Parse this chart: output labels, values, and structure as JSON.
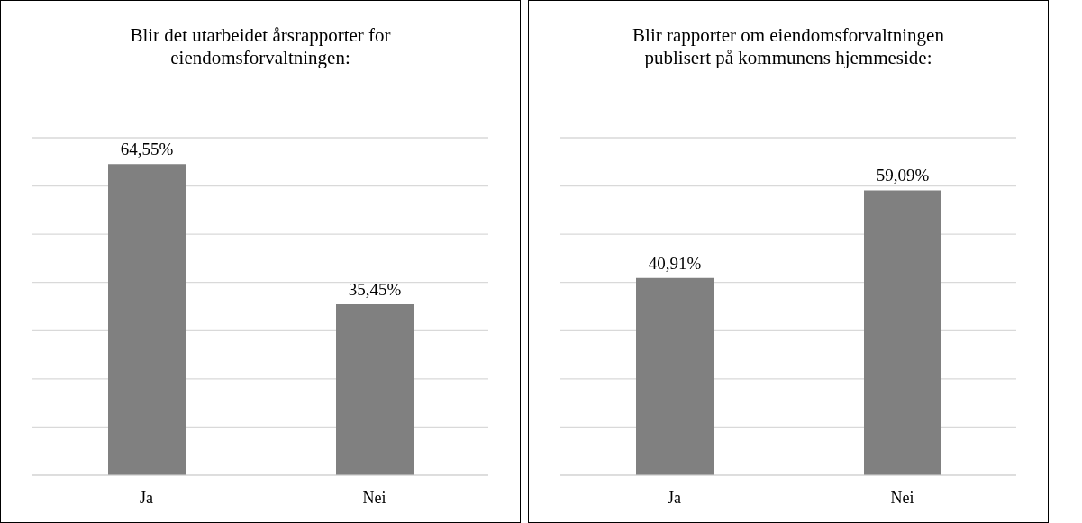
{
  "chart_data": [
    {
      "type": "bar",
      "title": "Blir det utarbeidet årsrapporter for eiendomsforvaltningen:",
      "categories": [
        "Ja",
        "Nei"
      ],
      "values": [
        64.55,
        35.45
      ],
      "value_labels": [
        "64,55%",
        "35,45%"
      ],
      "color": "#808080",
      "ylim": [
        0,
        70
      ],
      "yticks": [
        0,
        {
          "value": 10,
          "label": null
        },
        {
          "value": 20,
          "label": null
        },
        {
          "value": 30,
          "label": null
        },
        {
          "value": 40,
          "label": null
        },
        {
          "value": 50,
          "label": null
        },
        {
          "value": 60,
          "label": null
        },
        {
          "value": 70,
          "label": null
        }
      ],
      "grid": "y",
      "tick_labels": "x",
      "legend": false
    },
    {
      "type": "bar",
      "title": "Blir rapporter om eiendomsforvaltningen publisert på kommunens hjemmeside:",
      "categories": [
        "Ja",
        "Nei"
      ],
      "values": [
        40.91,
        59.09
      ],
      "value_labels": [
        "40,91%",
        "59,09%"
      ],
      "color": "#808080",
      "ylim": [
        0,
        70
      ],
      "yticks": [
        0,
        {
          "value": 10,
          "label": null
        },
        {
          "value": 20,
          "label": null
        },
        {
          "value": 30,
          "label": null
        },
        {
          "value": 40,
          "label": null
        },
        {
          "value": 50,
          "label": null
        },
        {
          "value": 60,
          "label": null
        },
        {
          "value": 70,
          "label": null
        }
      ],
      "grid": "y",
      "tick_labels": "x",
      "legend": false
    }
  ]
}
